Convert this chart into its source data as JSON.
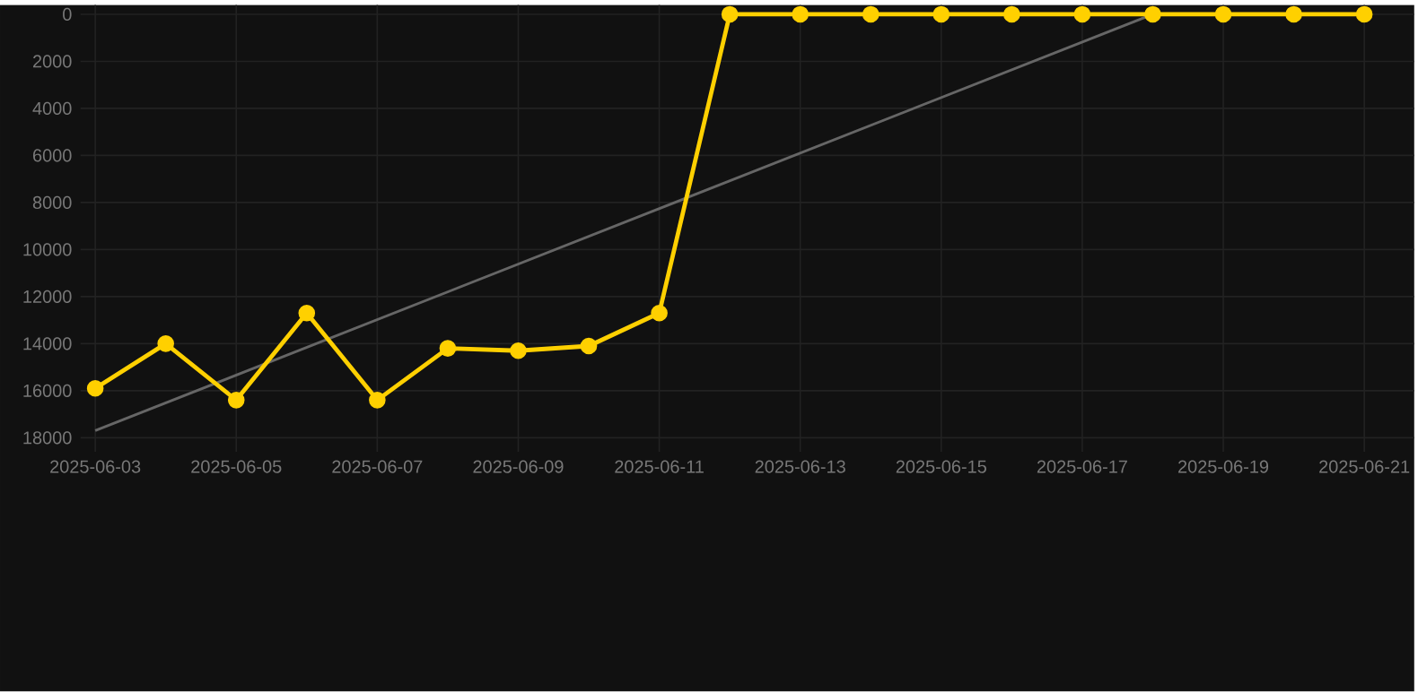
{
  "chart_data": {
    "type": "line",
    "x": [
      "2025-06-03",
      "2025-06-04",
      "2025-06-05",
      "2025-06-06",
      "2025-06-07",
      "2025-06-08",
      "2025-06-09",
      "2025-06-10",
      "2025-06-11",
      "2025-06-12",
      "2025-06-13",
      "2025-06-14",
      "2025-06-15",
      "2025-06-16",
      "2025-06-17",
      "2025-06-18",
      "2025-06-19",
      "2025-06-20",
      "2025-06-21"
    ],
    "series": [
      {
        "color": "#ffd000",
        "marker": "circle",
        "values": [
          15900,
          14000,
          16400,
          12700,
          16400,
          14200,
          14300,
          14100,
          12700,
          0,
          0,
          0,
          0,
          0,
          0,
          0,
          0,
          0,
          0
        ]
      },
      {
        "type": "line",
        "color": "#666666",
        "marker": "none",
        "x": [
          "2025-06-03",
          "2025-06-18"
        ],
        "values": [
          17700,
          0
        ]
      }
    ],
    "xlim": [
      "2025-06-02T19:00",
      "2025-06-21T17:00"
    ],
    "xticks": [
      "2025-06-03",
      "2025-06-05",
      "2025-06-07",
      "2025-06-09",
      "2025-06-11",
      "2025-06-13",
      "2025-06-15",
      "2025-06-17",
      "2025-06-19",
      "2025-06-21"
    ],
    "ylim": [
      18600,
      -400
    ],
    "yticks": [
      0,
      2000,
      4000,
      6000,
      8000,
      10000,
      12000,
      14000,
      16000,
      18000
    ],
    "grid": true
  }
}
